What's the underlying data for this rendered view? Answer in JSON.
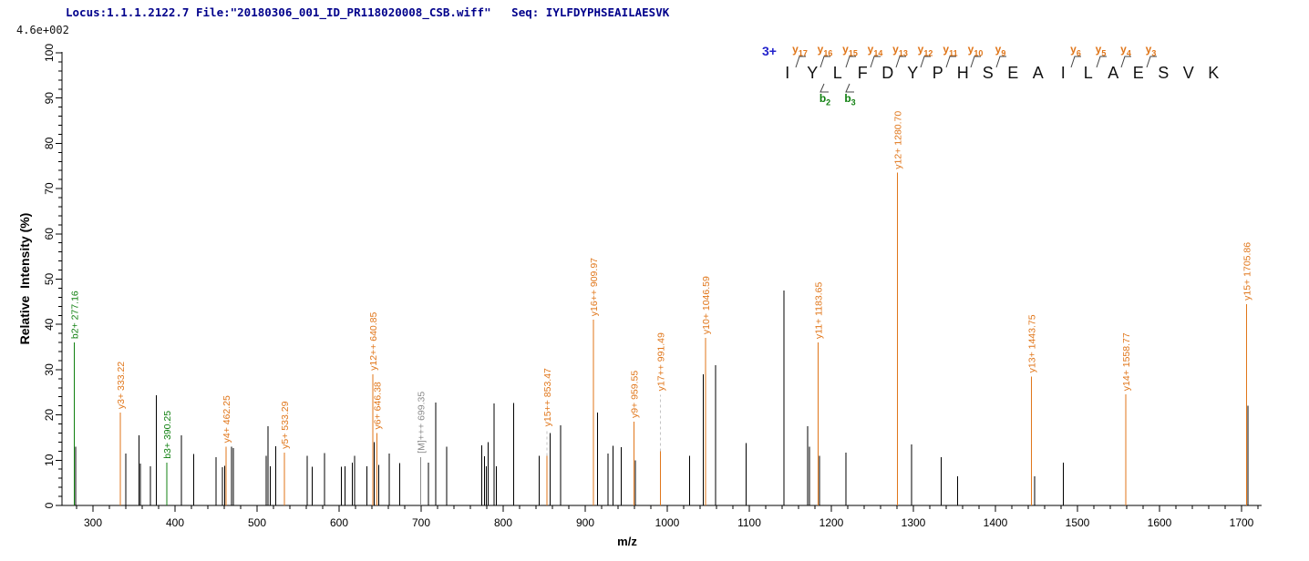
{
  "header": {
    "title": "Locus:1.1.1.2122.7 File:\"20180306_001_ID_PR118020008_CSB.wiff\"   Seq: IYLFDYPHSEAILAESVK",
    "scale_note": "4.6e+002"
  },
  "axes": {
    "x_label": "m/z",
    "y_label": "Relative  Intensity (%)"
  },
  "peptide": {
    "charge": "3+",
    "sequence": "IYLFDYPHSEAILAESVK",
    "residues": [
      {
        "aa": "I"
      },
      {
        "aa": "Y",
        "y": "y17"
      },
      {
        "aa": "L",
        "y": "y16",
        "b": "b2"
      },
      {
        "aa": "F",
        "y": "y15",
        "b": "b3"
      },
      {
        "aa": "D",
        "y": "y14"
      },
      {
        "aa": "Y",
        "y": "y13"
      },
      {
        "aa": "P",
        "y": "y12"
      },
      {
        "aa": "H",
        "y": "y11"
      },
      {
        "aa": "S",
        "y": "y10"
      },
      {
        "aa": "E",
        "y": "y9"
      },
      {
        "aa": "A"
      },
      {
        "aa": "I"
      },
      {
        "aa": "L",
        "y": "y6"
      },
      {
        "aa": "A",
        "y": "y5"
      },
      {
        "aa": "E",
        "y": "y4"
      },
      {
        "aa": "S",
        "y": "y3"
      },
      {
        "aa": "V"
      },
      {
        "aa": "K"
      }
    ]
  },
  "colors": {
    "y_ion": "#E0761A",
    "b_ion": "#108010",
    "precursor": "#8C8C8C",
    "peak": "#000000",
    "axis": "#000000",
    "dash": "#C4C4C4",
    "title": "#00008B",
    "charge": "#2222CC"
  },
  "chart_data": {
    "type": "bar",
    "subtype": "mass-spectrum",
    "xlabel": "m/z",
    "ylabel": "Relative  Intensity (%)",
    "x_range": [
      262,
      1724
    ],
    "y_range": [
      0,
      100
    ],
    "x_ticks": [
      300,
      400,
      500,
      600,
      700,
      800,
      900,
      1000,
      1100,
      1200,
      1300,
      1400,
      1500,
      1600,
      1700
    ],
    "x_minor_step": 20,
    "y_ticks": [
      0,
      10,
      20,
      30,
      40,
      50,
      60,
      70,
      80,
      90,
      100
    ],
    "y_minor_step": 2,
    "base_intensity": "4.6e+002",
    "labeled_peaks": [
      {
        "label": "b2+ 277.16",
        "mz": 277.16,
        "intensity": 36,
        "ion": "b"
      },
      {
        "label": "y3+ 333.22",
        "mz": 333.22,
        "intensity": 20.5,
        "ion": "y"
      },
      {
        "label": "b3+ 390.25",
        "mz": 390.25,
        "intensity": 9.5,
        "ion": "b"
      },
      {
        "label": "y4+ 462.25",
        "mz": 462.25,
        "intensity": 13,
        "ion": "y"
      },
      {
        "label": "y5+ 533.29",
        "mz": 533.29,
        "intensity": 11.7,
        "ion": "y"
      },
      {
        "label": "y12++ 640.85",
        "mz": 640.85,
        "intensity": 29,
        "ion": "y"
      },
      {
        "label": "y6+ 646.38",
        "mz": 646.38,
        "intensity": 16,
        "ion": "y"
      },
      {
        "label": "[M]+++ 699.35",
        "mz": 699.35,
        "intensity": 10.7,
        "ion": "M"
      },
      {
        "label": "y15++ 853.47",
        "mz": 853.47,
        "intensity": 11,
        "ion": "y",
        "dash": 28
      },
      {
        "label": "y16++ 909.97",
        "mz": 909.97,
        "intensity": 41,
        "ion": "y"
      },
      {
        "label": "y9+ 959.55",
        "mz": 959.55,
        "intensity": 18.5,
        "ion": "y"
      },
      {
        "label": "y17++ 991.49",
        "mz": 991.49,
        "intensity": 12,
        "ion": "y",
        "dash": 62
      },
      {
        "label": "y10+ 1046.59",
        "mz": 1046.59,
        "intensity": 37,
        "ion": "y"
      },
      {
        "label": "y11+ 1183.65",
        "mz": 1183.65,
        "intensity": 36,
        "ion": "y"
      },
      {
        "label": "y12+ 1280.70",
        "mz": 1280.7,
        "intensity": 73.5,
        "ion": "y"
      },
      {
        "label": "y13+ 1443.75",
        "mz": 1443.75,
        "intensity": 28.5,
        "ion": "y"
      },
      {
        "label": "y14+ 1558.77",
        "mz": 1558.77,
        "intensity": 24.5,
        "ion": "y"
      },
      {
        "label": "y15+ 1705.86",
        "mz": 1705.86,
        "intensity": 44.5,
        "ion": "y"
      }
    ],
    "unlabeled_peaks": [
      [
        279,
        13
      ],
      [
        340,
        11.5
      ],
      [
        356,
        15.5
      ],
      [
        358,
        9.3
      ],
      [
        370,
        8.7
      ],
      [
        377,
        24.3
      ],
      [
        408,
        15.5
      ],
      [
        423,
        11.4
      ],
      [
        450,
        10.7
      ],
      [
        458,
        8.5
      ],
      [
        460.5,
        8.8
      ],
      [
        469,
        13
      ],
      [
        471,
        12.7
      ],
      [
        511,
        11
      ],
      [
        513.5,
        17.5
      ],
      [
        516,
        8.7
      ],
      [
        523,
        13.1
      ],
      [
        561,
        11
      ],
      [
        567,
        8.6
      ],
      [
        582,
        11.6
      ],
      [
        603,
        8.6
      ],
      [
        607,
        8.7
      ],
      [
        616,
        9.5
      ],
      [
        619,
        11
      ],
      [
        634,
        8.7
      ],
      [
        643,
        14
      ],
      [
        648.5,
        9
      ],
      [
        661,
        11.5
      ],
      [
        674,
        9.4
      ],
      [
        709,
        9.5
      ],
      [
        718,
        22.7
      ],
      [
        731,
        13
      ],
      [
        774,
        13.3
      ],
      [
        777,
        10.9
      ],
      [
        779.5,
        8.7
      ],
      [
        781.5,
        14
      ],
      [
        789,
        22.5
      ],
      [
        791.5,
        8.7
      ],
      [
        813,
        22.6
      ],
      [
        844,
        11
      ],
      [
        857,
        16
      ],
      [
        870,
        17.7
      ],
      [
        915,
        20.5
      ],
      [
        928,
        11.5
      ],
      [
        934,
        13.2
      ],
      [
        944,
        12.9
      ],
      [
        961,
        10
      ],
      [
        1027,
        11
      ],
      [
        1044,
        29
      ],
      [
        1059,
        31
      ],
      [
        1096,
        13.8
      ],
      [
        1142,
        47.5
      ],
      [
        1171,
        17.5
      ],
      [
        1173.5,
        13
      ],
      [
        1185.5,
        11
      ],
      [
        1218,
        11.7
      ],
      [
        1298,
        13.5
      ],
      [
        1334,
        10.7
      ],
      [
        1354,
        6.4
      ],
      [
        1448,
        6.4
      ],
      [
        1483,
        9.5
      ],
      [
        1707.5,
        22
      ]
    ]
  }
}
